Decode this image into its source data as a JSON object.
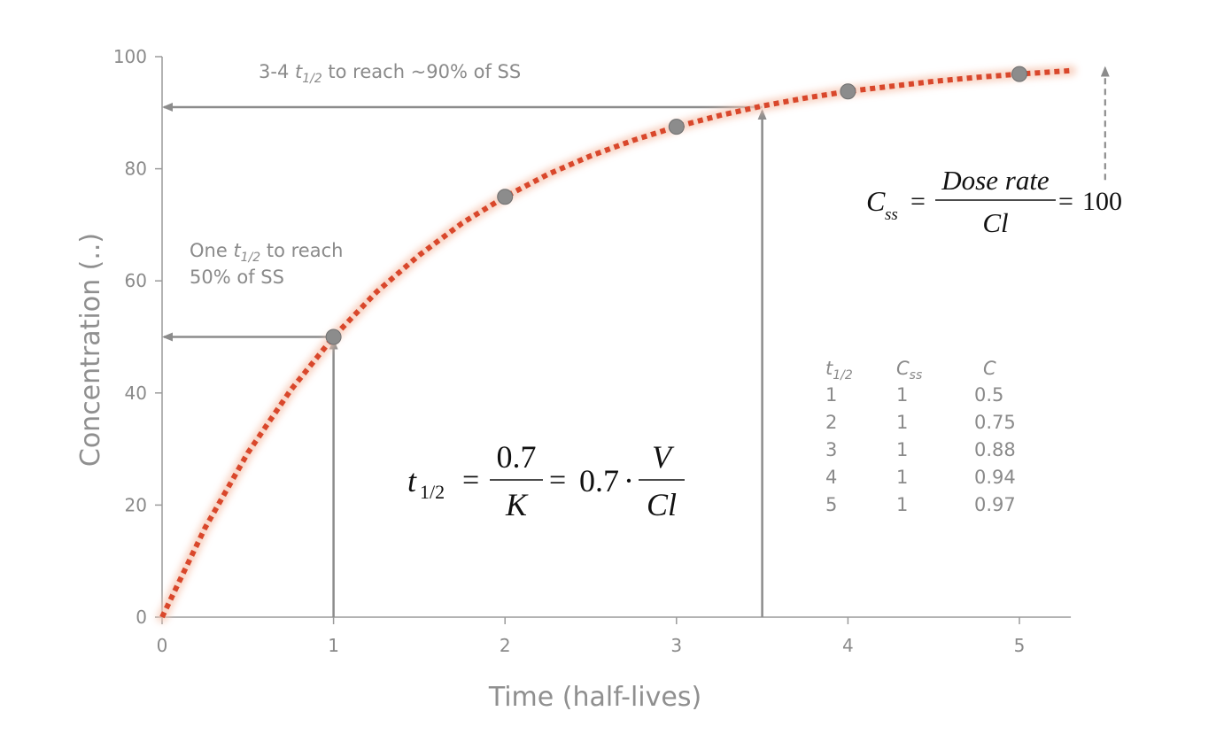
{
  "chart_data": {
    "type": "line",
    "xlabel": "Time (half-lives)",
    "ylabel": "Concentration (..)",
    "xlim": [
      0,
      5.3
    ],
    "ylim": [
      0,
      100
    ],
    "x_ticks": [
      "0",
      "1",
      "2",
      "3",
      "4",
      "5"
    ],
    "y_ticks": [
      "0",
      "20",
      "40",
      "60",
      "80",
      "100"
    ],
    "grid": false,
    "series": [
      {
        "style": "dotted",
        "color": "#d9472b",
        "x": [
          0,
          0.25,
          0.5,
          0.75,
          1,
          1.25,
          1.5,
          1.75,
          2,
          2.25,
          2.5,
          2.75,
          3,
          3.25,
          3.5,
          3.75,
          4,
          4.25,
          4.5,
          4.75,
          5,
          5.3
        ],
        "y": [
          0,
          15.9,
          29.3,
          40.5,
          50,
          58,
          64.6,
          70.3,
          75,
          79,
          82.3,
          85.1,
          87.5,
          89.5,
          91.2,
          92.6,
          93.8,
          94.7,
          95.6,
          96.3,
          96.9,
          97.5
        ]
      }
    ],
    "points": {
      "color": "#8c8c8c",
      "x": [
        1,
        2,
        3,
        4,
        5
      ],
      "y": [
        50,
        75,
        87.5,
        93.8,
        96.9
      ]
    },
    "annotations": {
      "ss90": {
        "prefix": "3-4 ",
        "t": "t",
        "sub": "1/2",
        "suffix": " to reach ~90% of SS",
        "x": 3.5,
        "y": 91
      },
      "ss50": {
        "line1_prefix": "One ",
        "t": "t",
        "sub": "1/2",
        "line1_suffix": " to reach",
        "line2": "50% of SS",
        "x": 1,
        "y": 50
      },
      "css_arrow": {
        "x": 5.5,
        "y_from": 78,
        "y_to": 98
      }
    },
    "formula_css": {
      "lhs": "C",
      "lhs_sub": "ss",
      "eq": "=",
      "num": "Dose rate",
      "den": "Cl",
      "rhs": "100"
    },
    "formula_thalf": {
      "lhs": "t",
      "lhs_sub": "1/2",
      "eq": "=",
      "num1": "0.7",
      "den1": "K",
      "eq2": "=",
      "coef": "0.7",
      "dot": "·",
      "num2": "V",
      "den2": "Cl"
    },
    "table": {
      "headers": [
        {
          "t": "t",
          "sub": "1/2"
        },
        {
          "t": "C",
          "sub": "ss"
        },
        {
          "t": "C",
          "sub": ""
        }
      ],
      "rows": [
        [
          "1",
          "1",
          "0.5"
        ],
        [
          "2",
          "1",
          "0.75"
        ],
        [
          "3",
          "1",
          "0.88"
        ],
        [
          "4",
          "1",
          "0.94"
        ],
        [
          "5",
          "1",
          "0.97"
        ]
      ]
    },
    "colors": {
      "axis": "#9a9a9a",
      "guide": "#8c8c8c",
      "curve": "#d9472b",
      "glow": "#f6c7b4"
    }
  }
}
